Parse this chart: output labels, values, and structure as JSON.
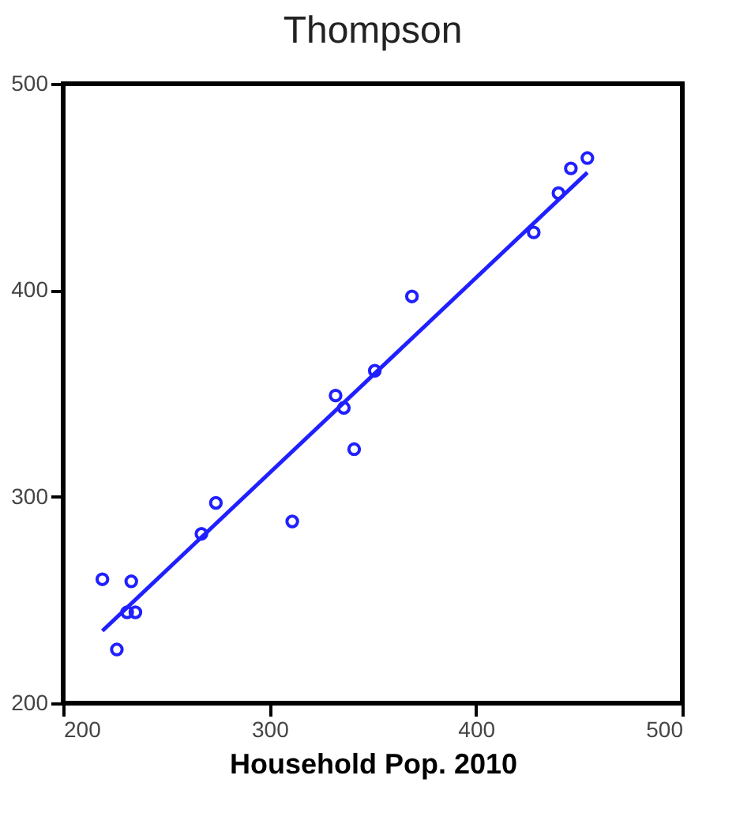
{
  "chart_data": {
    "type": "scatter",
    "title": "Thompson",
    "xlabel": "Household Pop. 2010",
    "xlim": [
      200,
      500
    ],
    "ylim": [
      200,
      500
    ],
    "xticks": [
      200,
      300,
      400,
      500
    ],
    "yticks": [
      200,
      300,
      400,
      500
    ],
    "grid": false,
    "series": [
      {
        "color": "#2020ff",
        "marker": "circle",
        "x": [
          219,
          226,
          233,
          231,
          235,
          267,
          274,
          311,
          341,
          332,
          336,
          351,
          369,
          428,
          440,
          446,
          454
        ],
        "values": [
          260,
          226,
          259,
          244,
          244,
          282,
          297,
          288,
          323,
          349,
          343,
          361,
          397,
          428,
          447,
          459,
          464
        ]
      },
      {
        "type": "line",
        "marker": "none",
        "color": "#2020ff",
        "x": [
          219,
          454
        ],
        "values": [
          235,
          457
        ]
      }
    ]
  }
}
